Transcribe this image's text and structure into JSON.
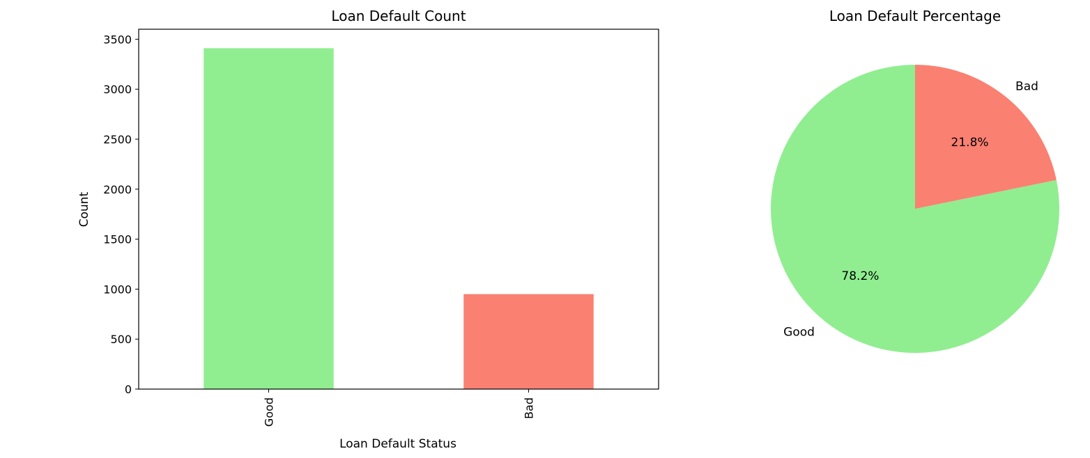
{
  "chart_data": [
    {
      "type": "bar",
      "title": "Loan Default Count",
      "xlabel": "Loan Default Status",
      "ylabel": "Count",
      "categories": [
        "Good",
        "Bad"
      ],
      "values": [
        3410,
        950
      ],
      "colors": [
        "#90ee90",
        "#fa8072"
      ],
      "ylim": [
        0,
        3600
      ],
      "yticks": [
        0,
        500,
        1000,
        1500,
        2000,
        2500,
        3000,
        3500
      ],
      "grid": false
    },
    {
      "type": "pie",
      "title": "Loan Default Percentage",
      "labels": [
        "Good",
        "Bad"
      ],
      "percentages": [
        78.2,
        21.8
      ],
      "pct_labels": [
        "78.2%",
        "21.8%"
      ],
      "colors": [
        "#90ee90",
        "#fa8072"
      ]
    }
  ]
}
